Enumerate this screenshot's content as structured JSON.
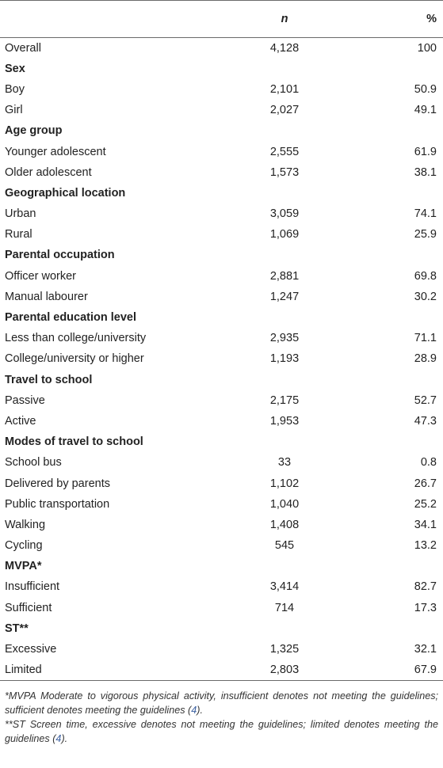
{
  "table": {
    "headers": {
      "label": "",
      "n": "n",
      "pct": "%"
    },
    "rows": [
      {
        "type": "data",
        "label": "Overall",
        "n": "4,128",
        "pct": "100"
      },
      {
        "type": "section",
        "label": "Sex"
      },
      {
        "type": "data",
        "label": "Boy",
        "n": "2,101",
        "pct": "50.9"
      },
      {
        "type": "data",
        "label": "Girl",
        "n": "2,027",
        "pct": "49.1"
      },
      {
        "type": "section",
        "label": "Age group"
      },
      {
        "type": "data",
        "label": "Younger adolescent",
        "n": "2,555",
        "pct": "61.9"
      },
      {
        "type": "data",
        "label": "Older adolescent",
        "n": "1,573",
        "pct": "38.1"
      },
      {
        "type": "section",
        "label": "Geographical location"
      },
      {
        "type": "data",
        "label": "Urban",
        "n": "3,059",
        "pct": "74.1"
      },
      {
        "type": "data",
        "label": "Rural",
        "n": "1,069",
        "pct": "25.9"
      },
      {
        "type": "section",
        "label": "Parental occupation"
      },
      {
        "type": "data",
        "label": "Officer worker",
        "n": "2,881",
        "pct": "69.8"
      },
      {
        "type": "data",
        "label": "Manual labourer",
        "n": "1,247",
        "pct": "30.2"
      },
      {
        "type": "section",
        "label": "Parental education level"
      },
      {
        "type": "data",
        "label": "Less than college/university",
        "n": "2,935",
        "pct": "71.1"
      },
      {
        "type": "data",
        "label": "College/university or higher",
        "n": "1,193",
        "pct": "28.9"
      },
      {
        "type": "section",
        "label": "Travel to school"
      },
      {
        "type": "data",
        "label": "Passive",
        "n": "2,175",
        "pct": "52.7"
      },
      {
        "type": "data",
        "label": "Active",
        "n": "1,953",
        "pct": "47.3"
      },
      {
        "type": "section",
        "label": "Modes of travel to school"
      },
      {
        "type": "data",
        "label": "School bus",
        "n": "33",
        "pct": "0.8"
      },
      {
        "type": "data",
        "label": "Delivered by parents",
        "n": "1,102",
        "pct": "26.7"
      },
      {
        "type": "data",
        "label": "Public transportation",
        "n": "1,040",
        "pct": "25.2"
      },
      {
        "type": "data",
        "label": "Walking",
        "n": "1,408",
        "pct": "34.1"
      },
      {
        "type": "data",
        "label": "Cycling",
        "n": "545",
        "pct": "13.2"
      },
      {
        "type": "section",
        "label": "MVPA*"
      },
      {
        "type": "data",
        "label": "Insufficient",
        "n": "3,414",
        "pct": "82.7"
      },
      {
        "type": "data",
        "label": "Sufficient",
        "n": "714",
        "pct": "17.3"
      },
      {
        "type": "section",
        "label": "ST**"
      },
      {
        "type": "data",
        "label": "Excessive",
        "n": "1,325",
        "pct": "32.1"
      },
      {
        "type": "data",
        "label": "Limited",
        "n": "2,803",
        "pct": "67.9"
      }
    ]
  },
  "footnotes": {
    "note1_text": "*MVPA Moderate to vigorous physical activity, insufficient denotes not meeting the guidelines; sufficient denotes meeting the guidelines (",
    "note1_ref": "4",
    "note1_end": ").",
    "note2_text": "**ST Screen time, excessive denotes not meeting the guidelines; limited denotes meeting the guidelines (",
    "note2_ref": "4",
    "note2_end": ")."
  },
  "colors": {
    "rule": "#6a6a6a",
    "text": "#222222",
    "link": "#3a5fa0"
  }
}
